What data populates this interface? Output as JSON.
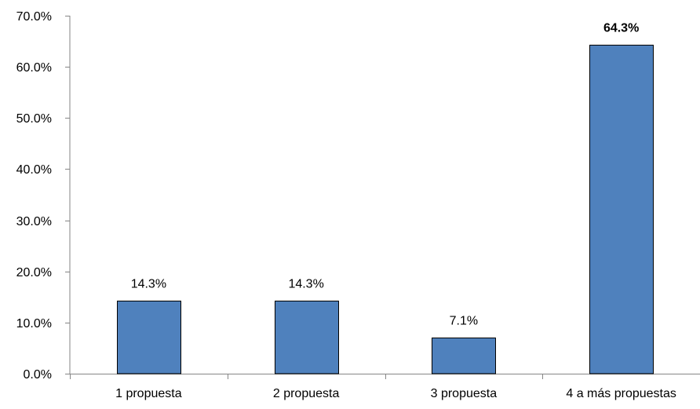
{
  "chart_data": {
    "type": "bar",
    "categories": [
      "1 propuesta",
      "2 propuesta",
      "3 propuesta",
      "4 a más propuestas"
    ],
    "values": [
      14.3,
      14.3,
      7.1,
      64.3
    ],
    "data_labels": [
      "14.3%",
      "14.3%",
      "7.1%",
      "64.3%"
    ],
    "bold_label_index": 3,
    "title": "",
    "xlabel": "",
    "ylabel": "",
    "ylim": [
      0,
      70
    ],
    "y_ticks": [
      0,
      10,
      20,
      30,
      40,
      50,
      60,
      70
    ],
    "y_tick_labels": [
      "0.0%",
      "10.0%",
      "20.0%",
      "30.0%",
      "40.0%",
      "50.0%",
      "60.0%",
      "70.0%"
    ],
    "grid": false,
    "legend": "none",
    "colors": {
      "bar_fill": "#4f81bd",
      "bar_stroke": "#000000",
      "axis": "#868686"
    }
  }
}
